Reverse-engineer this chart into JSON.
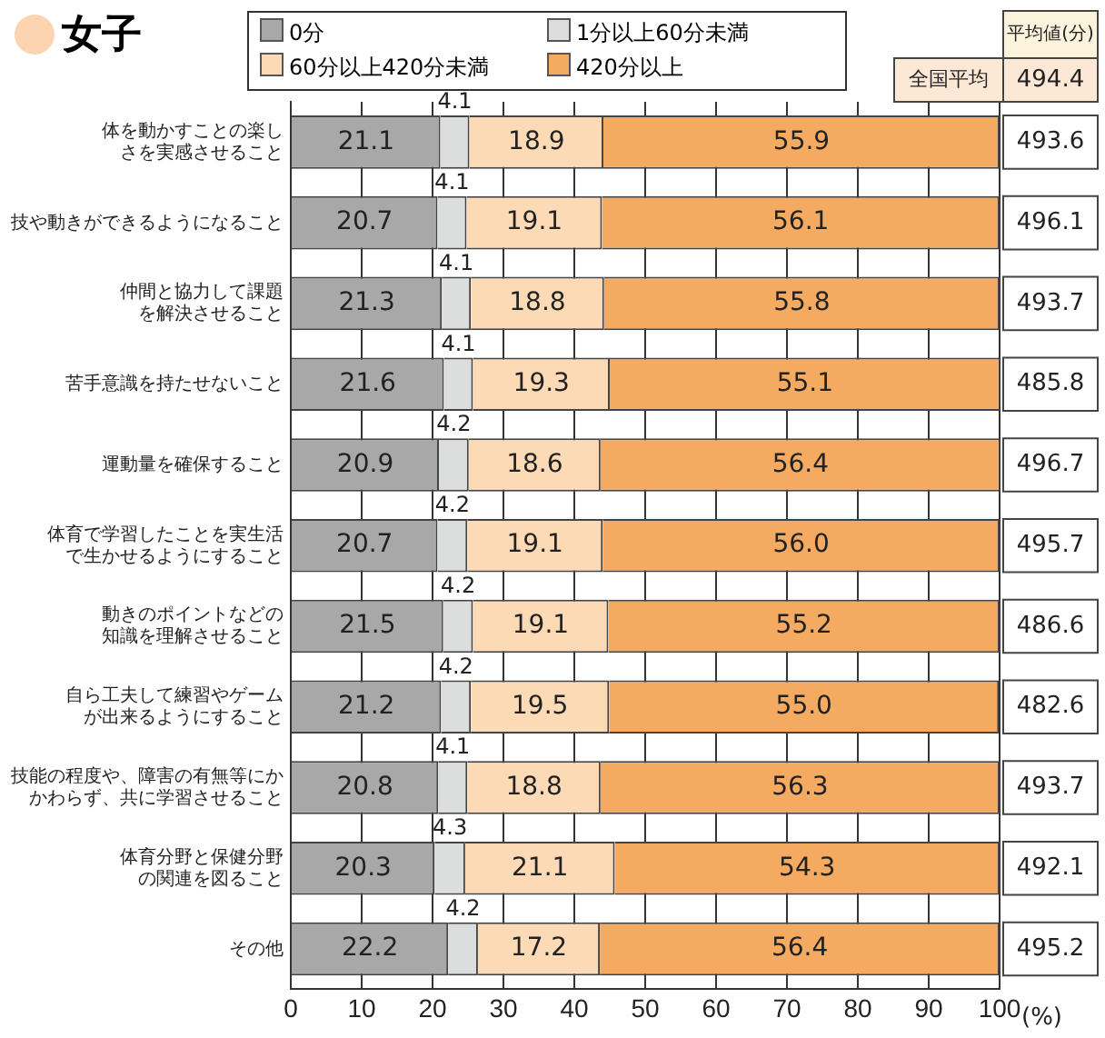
{
  "chart_data": {
    "type": "bar",
    "orientation": "horizontal",
    "stacked": true,
    "title": "女子",
    "categories": [
      "体を動かすことの楽しさを実感させること",
      "技や動きができるようになること",
      "仲間と協力して課題を解決させること",
      "苦手意識を持たせないこと",
      "運動量を確保すること",
      "体育で学習したことを実生活で生かせるようにすること",
      "動きのポイントなどの知識を理解させること",
      "自ら工夫して練習やゲームが出来るようにすること",
      "技能の程度や、障害の有無等にかかわらず、共に学習させること",
      "体育分野と保健分野の関連を図ること",
      "その他"
    ],
    "series": [
      {
        "name": "0分",
        "color": "#a8a8a8",
        "values": [
          21.1,
          20.7,
          21.3,
          21.6,
          20.9,
          20.7,
          21.5,
          21.2,
          20.8,
          20.3,
          22.2
        ],
        "value_labels": [
          "21.1",
          "20.7",
          "21.3",
          "21.6",
          "20.9",
          "20.7",
          "21.5",
          "21.2",
          "20.8",
          "20.3",
          "22.2"
        ]
      },
      {
        "name": "1分以上60分未満",
        "color": "#dcdddd",
        "values": [
          4.1,
          4.1,
          4.1,
          4.1,
          4.2,
          4.2,
          4.2,
          4.2,
          4.1,
          4.3,
          4.2
        ],
        "value_labels": [
          "4.1",
          "4.1",
          "4.1",
          "4.1",
          "4.2",
          "4.2",
          "4.2",
          "4.2",
          "4.1",
          "4.3",
          "4.2"
        ]
      },
      {
        "name": "60分以上420分未満",
        "color": "#fcdab6",
        "values": [
          18.9,
          19.1,
          18.8,
          19.3,
          18.6,
          19.1,
          19.1,
          19.5,
          18.8,
          21.1,
          17.2
        ],
        "value_labels": [
          "18.9",
          "19.1",
          "18.8",
          "19.3",
          "18.6",
          "19.1",
          "19.1",
          "19.5",
          "18.8",
          "21.1",
          "17.2"
        ]
      },
      {
        "name": "420分以上",
        "color": "#f5aa62",
        "values": [
          55.9,
          56.1,
          55.8,
          55.1,
          56.4,
          56.0,
          55.2,
          55.0,
          56.3,
          54.3,
          56.4
        ],
        "value_labels": [
          "55.9",
          "56.1",
          "55.8",
          "55.1",
          "56.4",
          "56.0",
          "55.2",
          "55.0",
          "56.3",
          "54.3",
          "56.4"
        ]
      }
    ],
    "xlim": [
      0,
      100
    ],
    "xticks": [
      0,
      10,
      20,
      30,
      40,
      50,
      60,
      70,
      80,
      90,
      100
    ],
    "xlabel": "(%)",
    "grid": "x",
    "legend": "top",
    "annotations": [
      "平均値(分)",
      "全国平均",
      "494.4",
      "493.6",
      "496.1",
      "493.7",
      "485.8",
      "496.7",
      "495.7",
      "486.6",
      "482.6",
      "493.7",
      "492.1",
      "495.2"
    ]
  }
}
